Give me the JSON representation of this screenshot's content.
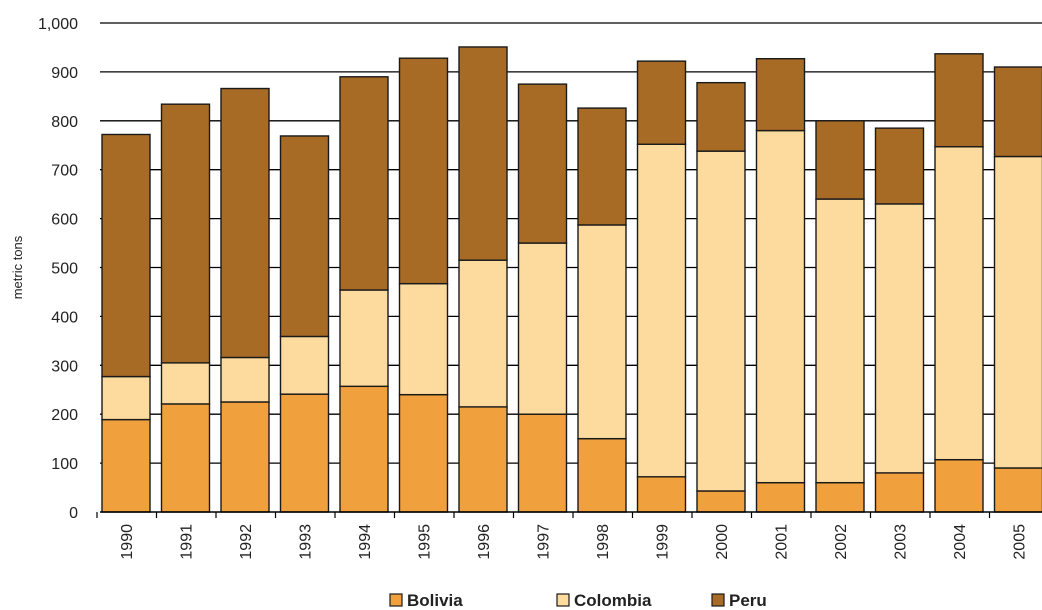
{
  "chart_data": {
    "type": "bar",
    "stacked": true,
    "ylabel": "metric tons",
    "xlabel": "",
    "ylim": [
      0,
      1000
    ],
    "yticks": [
      0,
      100,
      200,
      300,
      400,
      500,
      600,
      700,
      800,
      900,
      1000
    ],
    "ytick_labels": [
      "0",
      "100",
      "200",
      "300",
      "400",
      "500",
      "600",
      "700",
      "800",
      "900",
      "1,000"
    ],
    "grid": true,
    "legend_position": "bottom",
    "categories": [
      "1990",
      "1991",
      "1992",
      "1993",
      "1994",
      "1995",
      "1996",
      "1997",
      "1998",
      "1999",
      "2000",
      "2001",
      "2002",
      "2003",
      "2004",
      "2005"
    ],
    "series": [
      {
        "name": "Bolivia",
        "color": "#F0A03C",
        "values": [
          189,
          221,
          225,
          241,
          257,
          240,
          215,
          200,
          150,
          72,
          43,
          60,
          60,
          80,
          107,
          90
        ]
      },
      {
        "name": "Colombia",
        "color": "#FDDB9E",
        "values": [
          88,
          84,
          91,
          118,
          197,
          227,
          300,
          350,
          437,
          680,
          695,
          720,
          580,
          550,
          640,
          637
        ]
      },
      {
        "name": "Peru",
        "color": "#A86B25",
        "values": [
          495,
          529,
          550,
          410,
          436,
          461,
          436,
          325,
          239,
          170,
          140,
          147,
          160,
          155,
          190,
          183
        ]
      }
    ]
  }
}
